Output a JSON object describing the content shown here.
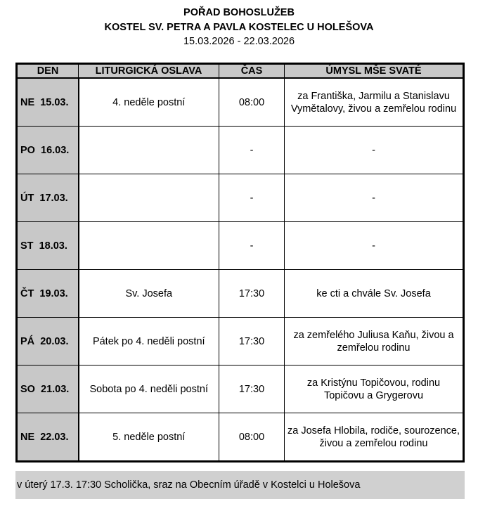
{
  "header": {
    "title": "POŘAD BOHOSLUŽEB",
    "church": "KOSTEL SV. PETRA A PAVLA KOSTELEC U HOLEŠOVA",
    "dates": "15.03.2026 - 22.03.2026"
  },
  "table": {
    "columns": [
      "DEN",
      "LITURGICKÁ OSLAVA",
      "ČAS",
      "ÚMYSL MŠE SVATÉ"
    ],
    "rows": [
      {
        "day": "NE  15.03.",
        "celebration": "4. neděle postní",
        "time": "08:00",
        "intention": "za Františka, Jarmilu a Stanislavu Vymětalovy, živou a zemřelou rodinu"
      },
      {
        "day": "PO  16.03.",
        "celebration": "",
        "time": "-",
        "intention": "-"
      },
      {
        "day": "ÚT  17.03.",
        "celebration": "",
        "time": "-",
        "intention": "-"
      },
      {
        "day": "ST  18.03.",
        "celebration": "",
        "time": "-",
        "intention": "-"
      },
      {
        "day": "ČT  19.03.",
        "celebration": "Sv. Josefa",
        "time": "17:30",
        "intention": "ke cti a chvále Sv. Josefa"
      },
      {
        "day": "PÁ  20.03.",
        "celebration": "Pátek po 4. neděli postní",
        "time": "17:30",
        "intention": "za zemřelého Juliusa Kaňu, živou a zemřelou rodinu"
      },
      {
        "day": "SO  21.03.",
        "celebration": "Sobota po 4. neděli postní",
        "time": "17:30",
        "intention": "za Kristýnu Topičovou, rodinu Topičovu a Grygerovu"
      },
      {
        "day": "NE  22.03.",
        "celebration": "5. neděle postní",
        "time": "08:00",
        "intention": "za Josefa Hlobila, rodiče, sourozence, živou a zemřelou rodinu"
      }
    ]
  },
  "note": "v úterý 17.3. 17:30 Scholička, sraz na Obecním úřadě v Kostelci u Holešova"
}
